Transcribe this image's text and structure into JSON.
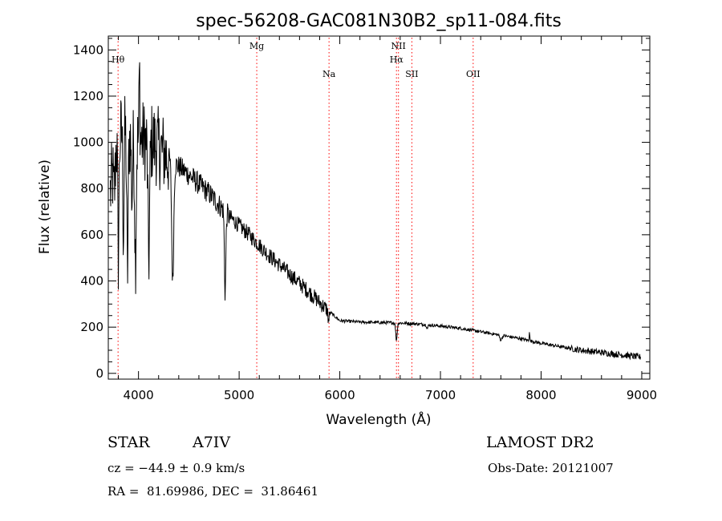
{
  "chart_data": {
    "type": "line",
    "title": "spec-56208-GAC081N30B2_sp11-084.fits",
    "xlabel": "Wavelength (Å)",
    "ylabel": "Flux (relative)",
    "xlim": [
      3700,
      9080
    ],
    "ylim": [
      -25,
      1460
    ],
    "x_ticks": [
      4000,
      5000,
      6000,
      7000,
      8000,
      9000
    ],
    "y_ticks": [
      0,
      200,
      400,
      600,
      800,
      1000,
      1200,
      1400
    ],
    "grid": false,
    "line_color": "#000000",
    "marker_color": "#ff0000",
    "continuum": {
      "x": [
        3720,
        3780,
        3850,
        3950,
        4050,
        4150,
        4300,
        4500,
        4700,
        4900,
        5100,
        5300,
        5500,
        5700,
        5850,
        6000,
        6200,
        6400,
        6600,
        6800,
        7000,
        7200,
        7400,
        7600,
        7800,
        8000,
        8200,
        8400,
        8600,
        8800,
        8990
      ],
      "y": [
        780,
        980,
        1060,
        1000,
        1010,
        1000,
        930,
        860,
        780,
        680,
        600,
        510,
        430,
        350,
        285,
        228,
        222,
        220,
        218,
        213,
        205,
        195,
        180,
        165,
        150,
        130,
        115,
        100,
        90,
        80,
        70
      ]
    },
    "absorption_features": [
      {
        "x": 3760,
        "depth": 360,
        "width": 8
      },
      {
        "x": 3800,
        "depth": 500,
        "width": 8
      },
      {
        "x": 3850,
        "depth": 450,
        "width": 8
      },
      {
        "x": 3890,
        "depth": 600,
        "width": 10
      },
      {
        "x": 3935,
        "depth": 250,
        "width": 8
      },
      {
        "x": 3970,
        "depth": 500,
        "width": 10
      },
      {
        "x": 4102,
        "depth": 500,
        "width": 12
      },
      {
        "x": 4340,
        "depth": 520,
        "width": 14
      },
      {
        "x": 4861,
        "depth": 350,
        "width": 10
      },
      {
        "x": 5890,
        "depth": 40,
        "width": 10
      },
      {
        "x": 6563,
        "depth": 75,
        "width": 10
      },
      {
        "x": 6870,
        "depth": 15,
        "width": 10
      },
      {
        "x": 7600,
        "depth": 20,
        "width": 15
      }
    ],
    "emission_features": [
      {
        "x": 3760,
        "height": 250,
        "width": 6
      },
      {
        "x": 4010,
        "height": 300,
        "width": 6
      },
      {
        "x": 7885,
        "height": 45,
        "width": 4
      }
    ],
    "noise": [
      {
        "x_max": 4300,
        "amplitude": 180
      },
      {
        "x_max": 4900,
        "amplitude": 50
      },
      {
        "x_max": 5900,
        "amplitude": 35
      },
      {
        "x_max": 8300,
        "amplitude": 7
      },
      {
        "x_max": 9000,
        "amplitude": 14
      }
    ],
    "lines": [
      {
        "name": "Hθ",
        "x": 3797,
        "label_row": 1
      },
      {
        "name": "Mg",
        "x": 5175,
        "label_row": 0
      },
      {
        "name": "Na",
        "x": 5893,
        "label_row": 2
      },
      {
        "name": "NII",
        "x": 6583,
        "label_row": 0
      },
      {
        "name": "Hα",
        "x": 6563,
        "label_row": 1
      },
      {
        "name": "SII",
        "x": 6716,
        "label_row": 2
      },
      {
        "name": "OII",
        "x": 7325,
        "label_row": 2
      }
    ]
  },
  "info": {
    "object_class": "STAR",
    "subclass": "A7IV",
    "survey": "LAMOST DR2",
    "cz": "cz = −44.9 ± 0.9 km/s",
    "obs_date": "Obs-Date: 20121007",
    "coords": "RA =  81.69986, DEC =  31.86461"
  }
}
